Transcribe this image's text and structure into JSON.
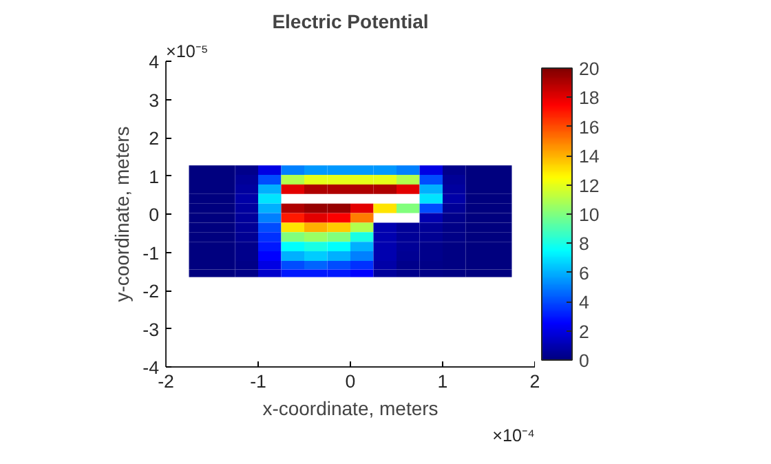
{
  "chart_data": {
    "type": "heatmap",
    "title": "Electric Potential",
    "xlabel": "x-coordinate, meters",
    "ylabel": "y-coordinate, meters",
    "x": [
      -1.625,
      -1.375,
      -1.125,
      -0.875,
      -0.625,
      -0.375,
      -0.125,
      0.125,
      0.375,
      0.625,
      0.875,
      1.125,
      1.375,
      1.625
    ],
    "y": [
      1.15,
      0.9,
      0.65,
      0.4,
      0.15,
      -0.1,
      -0.35,
      -0.6,
      -0.85,
      -1.1,
      -1.35,
      -1.55
    ],
    "cells": [
      [
        0,
        0,
        0.3,
        2,
        5,
        5.5,
        5.5,
        5.5,
        5.5,
        5,
        2,
        0.3,
        0,
        0
      ],
      [
        0,
        0,
        0.5,
        4,
        11,
        12,
        12,
        12,
        12,
        11,
        4,
        0.5,
        0,
        0
      ],
      [
        0,
        0,
        0.7,
        6,
        18,
        19,
        19,
        19,
        19,
        18,
        6,
        0.7,
        0,
        0
      ],
      [
        0,
        0,
        0.8,
        7,
        null,
        null,
        null,
        null,
        null,
        null,
        7,
        0.8,
        0,
        0
      ],
      [
        0,
        0,
        0.7,
        6,
        19,
        19.5,
        19.5,
        18,
        13,
        10,
        4,
        0.5,
        0,
        0
      ],
      [
        0,
        0,
        0.6,
        5,
        17,
        18,
        17.5,
        15,
        null,
        null,
        1,
        0.3,
        0,
        0
      ],
      [
        0,
        0,
        0.5,
        4,
        13,
        14,
        13.5,
        11,
        1,
        0.5,
        0.5,
        0.2,
        0,
        0
      ],
      [
        0,
        0,
        0.4,
        3.5,
        10,
        10.5,
        10,
        8,
        1,
        0.5,
        0.4,
        0.2,
        0,
        0
      ],
      [
        0,
        0,
        0.3,
        3,
        7.5,
        8,
        7.5,
        6,
        1,
        0.5,
        0.3,
        0.1,
        0,
        0
      ],
      [
        0,
        0,
        0.3,
        2.5,
        6,
        6.5,
        6,
        5,
        1,
        0.4,
        0.3,
        0.1,
        0,
        0
      ],
      [
        0,
        0,
        0.2,
        2,
        4,
        4.5,
        4,
        3.5,
        0.8,
        0.3,
        0.2,
        0.1,
        0,
        0
      ],
      [
        0,
        0,
        0.2,
        1.5,
        3,
        3,
        3,
        2.5,
        0.6,
        0.3,
        0.2,
        0.1,
        0,
        0
      ]
    ],
    "clim": [
      0,
      20
    ],
    "cticks": [
      0,
      2,
      4,
      6,
      8,
      10,
      12,
      14,
      16,
      18,
      20
    ],
    "xlim": [
      -2,
      2
    ],
    "ylim": [
      -4,
      4
    ],
    "xticks": [
      -2,
      -1,
      0,
      1,
      2
    ],
    "yticks": [
      -4,
      -3,
      -2,
      -1,
      0,
      1,
      2,
      3,
      4
    ],
    "annotations": [
      "×10⁻⁵",
      "×10⁻⁴"
    ],
    "grid": false
  }
}
